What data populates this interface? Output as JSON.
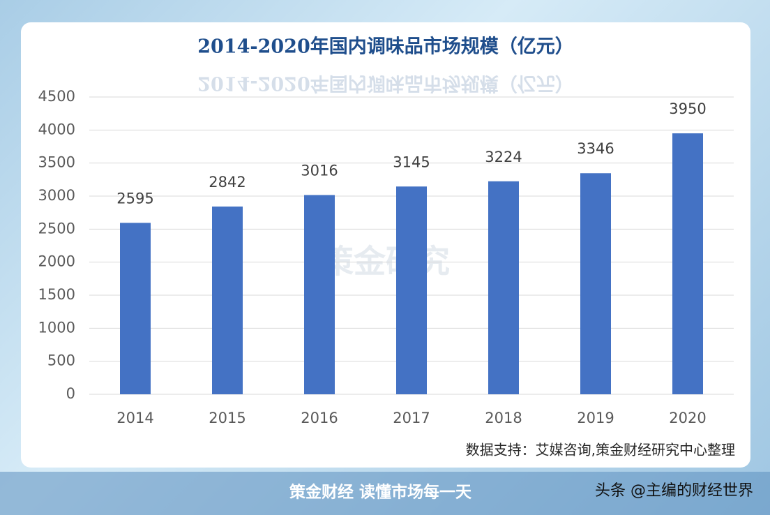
{
  "chart_data": {
    "type": "bar",
    "title": "2014-2020年国内调味品市场规模（亿元）",
    "categories": [
      "2014",
      "2015",
      "2016",
      "2017",
      "2018",
      "2019",
      "2020"
    ],
    "values": [
      2595,
      2842,
      3016,
      3145,
      3224,
      3346,
      3950
    ],
    "color": "#4472c4",
    "ylim": [
      0,
      4500
    ],
    "yticks": [
      0,
      500,
      1000,
      1500,
      2000,
      2500,
      3000,
      3500,
      4000,
      4500
    ],
    "grid": true,
    "watermark": "策金研究",
    "source": "数据支持：艾媒咨询,策金财经研究中心整理"
  },
  "footer": {
    "brand": "策金财经  读懂市场每一天",
    "account": "头条 @主编的财经世界"
  }
}
